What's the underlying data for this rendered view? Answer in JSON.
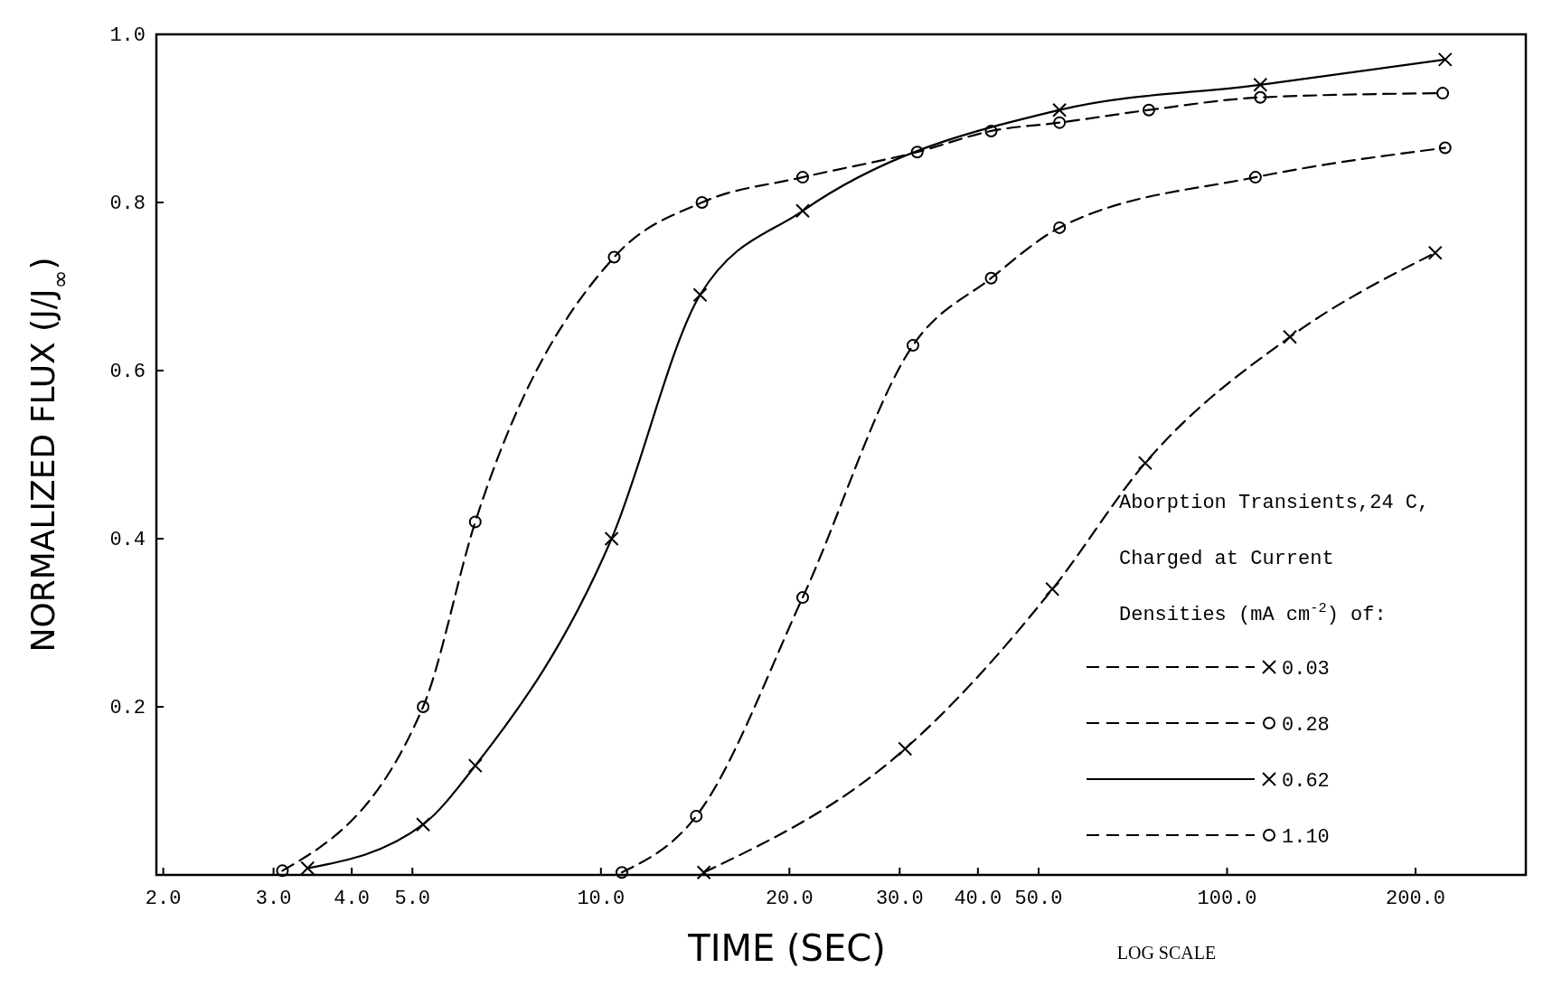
{
  "chart_data": {
    "type": "line",
    "xlabel": "TIME (SEC)",
    "ylabel": "NORMALIZED FLUX (J/J$_{∞}$)",
    "legend_title": "Aborption Transients,24 C, Charged at Current Densities (mA cm$^{-2}$) of:",
    "annotations": [
      "LOG SCALE"
    ],
    "log": "x",
    "xlim": [
      1.95,
      300
    ],
    "ylim": [
      0,
      1
    ],
    "xticks": [
      {
        "value": 2,
        "label": "2.0"
      },
      {
        "value": 3,
        "label": "3.0"
      },
      {
        "value": 4,
        "label": "4.0"
      },
      {
        "value": 5,
        "label": "5.0"
      },
      {
        "value": 10,
        "label": "10.0"
      },
      {
        "value": 20,
        "label": "20.0"
      },
      {
        "value": 30,
        "label": "30.0"
      },
      {
        "value": 40,
        "label": "40.0"
      },
      {
        "value": 50,
        "label": "50.0"
      },
      {
        "value": 100,
        "label": "100.0"
      },
      {
        "value": 200,
        "label": "200.0"
      }
    ],
    "yticks": [
      {
        "value": 0.2,
        "label": "0.2"
      },
      {
        "value": 0.4,
        "label": "0.4"
      },
      {
        "value": 0.6,
        "label": "0.6"
      },
      {
        "value": 0.8,
        "label": "0.8"
      },
      {
        "value": 1,
        "label": "1.0"
      }
    ],
    "grid": false,
    "legend": "bottom right",
    "series": [
      {
        "name": "0.03",
        "color": "#000000",
        "marker": "cross",
        "line_style": "dashed",
        "x": [
          14.6,
          30.6,
          52.6,
          74,
          126,
          215
        ],
        "values": [
          0.003,
          0.15,
          0.34,
          0.49,
          0.64,
          0.74
        ]
      },
      {
        "name": "0.28",
        "color": "#000000",
        "marker": "circle",
        "line_style": "dashed",
        "x": [
          10.8,
          14.2,
          21,
          31.5,
          42,
          54,
          111,
          223
        ],
        "values": [
          0.003,
          0.07,
          0.33,
          0.63,
          0.71,
          0.77,
          0.83,
          0.865
        ]
      },
      {
        "name": "0.62",
        "color": "#000000",
        "marker": "cross",
        "line_style": "solid",
        "x": [
          3.4,
          5.2,
          6.3,
          10.4,
          14.4,
          21,
          54,
          113,
          223
        ],
        "values": [
          0.008,
          0.06,
          0.13,
          0.4,
          0.69,
          0.79,
          0.91,
          0.94,
          0.97
        ]
      },
      {
        "name": "1.10",
        "color": "#000000",
        "marker": "circle",
        "line_style": "dashed",
        "x": [
          3.1,
          5.2,
          6.3,
          10.5,
          14.5,
          21,
          32,
          42,
          54,
          75,
          113,
          221
        ],
        "values": [
          0.005,
          0.2,
          0.42,
          0.735,
          0.8,
          0.83,
          0.86,
          0.885,
          0.895,
          0.91,
          0.925,
          0.93
        ]
      }
    ]
  }
}
